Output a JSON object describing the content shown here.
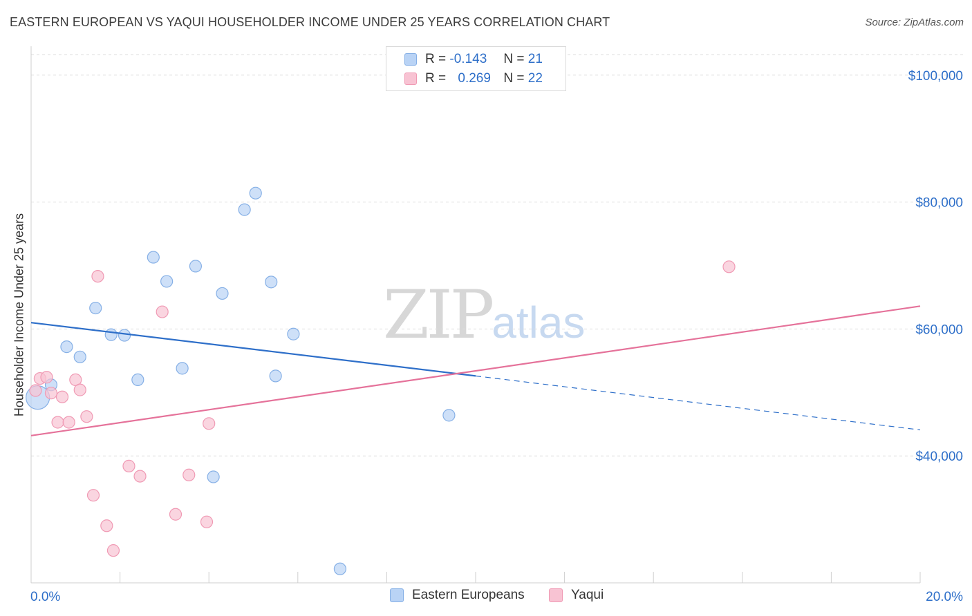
{
  "header": {
    "title": "EASTERN EUROPEAN VS YAQUI HOUSEHOLDER INCOME UNDER 25 YEARS CORRELATION CHART",
    "source": "Source: ZipAtlas.com"
  },
  "legend_top": {
    "rows": [
      {
        "r_label": "R =",
        "r_value": "-0.143",
        "n_label": "N =",
        "n_value": "21"
      },
      {
        "r_label": "R =",
        "r_value": "0.269",
        "n_label": "N =",
        "n_value": "22"
      }
    ]
  },
  "watermark": {
    "zip": "ZIP",
    "atlas": "atlas"
  },
  "colors": {
    "blue_fill": "#b9d3f5",
    "blue_stroke": "#86b0e6",
    "blue_line": "#2e6fc9",
    "pink_fill": "#f8c3d3",
    "pink_stroke": "#f09ab4",
    "pink_line": "#e5729a",
    "axis_text": "#2e6fc9",
    "grid": "#dddddd"
  },
  "chart_data": {
    "type": "scatter",
    "title": "EASTERN EUROPEAN VS YAQUI HOUSEHOLDER INCOME UNDER 25 YEARS CORRELATION CHART",
    "xlabel": "",
    "ylabel": "Householder Income Under 25 years",
    "xlim": [
      0,
      20
    ],
    "ylim": [
      20000,
      104000
    ],
    "x_tick_labels": [
      "0.0%",
      "20.0%"
    ],
    "y_ticks": [
      40000,
      60000,
      80000,
      100000
    ],
    "y_tick_labels": [
      "$40,000",
      "$60,000",
      "$80,000",
      "$100,000"
    ],
    "grid": "horizontal dashed",
    "legend_placement": "bottom-center",
    "series": [
      {
        "name": "Eastern Europeans",
        "color": "#b9d3f5",
        "points": [
          {
            "x": 0.15,
            "y": 49200,
            "size": "large"
          },
          {
            "x": 0.45,
            "y": 51200
          },
          {
            "x": 0.8,
            "y": 57200
          },
          {
            "x": 1.1,
            "y": 55600
          },
          {
            "x": 1.45,
            "y": 63300
          },
          {
            "x": 1.8,
            "y": 59100
          },
          {
            "x": 2.1,
            "y": 59000
          },
          {
            "x": 2.4,
            "y": 52000
          },
          {
            "x": 2.75,
            "y": 71300
          },
          {
            "x": 3.05,
            "y": 67500
          },
          {
            "x": 3.4,
            "y": 53800
          },
          {
            "x": 3.7,
            "y": 69900
          },
          {
            "x": 4.1,
            "y": 36700
          },
          {
            "x": 4.3,
            "y": 65600
          },
          {
            "x": 4.8,
            "y": 78800
          },
          {
            "x": 5.05,
            "y": 81400
          },
          {
            "x": 5.4,
            "y": 67400
          },
          {
            "x": 5.5,
            "y": 52600
          },
          {
            "x": 5.9,
            "y": 59200
          },
          {
            "x": 6.95,
            "y": 22200
          },
          {
            "x": 9.4,
            "y": 46400
          }
        ],
        "trend": {
          "x": [
            0,
            10
          ],
          "y": [
            61000,
            52600
          ],
          "extended_to": [
            20,
            44100
          ]
        }
      },
      {
        "name": "Yaqui",
        "color": "#f8c3d3",
        "points": [
          {
            "x": 0.1,
            "y": 50300
          },
          {
            "x": 0.2,
            "y": 52200
          },
          {
            "x": 0.35,
            "y": 52400
          },
          {
            "x": 0.45,
            "y": 49900
          },
          {
            "x": 0.6,
            "y": 45300
          },
          {
            "x": 0.7,
            "y": 49300
          },
          {
            "x": 0.85,
            "y": 45300
          },
          {
            "x": 1.0,
            "y": 52000
          },
          {
            "x": 1.1,
            "y": 50400
          },
          {
            "x": 1.25,
            "y": 46200
          },
          {
            "x": 1.4,
            "y": 33800
          },
          {
            "x": 1.5,
            "y": 68300
          },
          {
            "x": 1.7,
            "y": 29000
          },
          {
            "x": 1.85,
            "y": 25100
          },
          {
            "x": 2.2,
            "y": 38400
          },
          {
            "x": 2.45,
            "y": 36800
          },
          {
            "x": 2.95,
            "y": 62700
          },
          {
            "x": 3.25,
            "y": 30800
          },
          {
            "x": 3.55,
            "y": 37000
          },
          {
            "x": 3.95,
            "y": 29600
          },
          {
            "x": 4.0,
            "y": 45100
          },
          {
            "x": 15.7,
            "y": 69800
          }
        ],
        "trend": {
          "x": [
            0,
            20
          ],
          "y": [
            43200,
            63600
          ]
        }
      }
    ]
  }
}
